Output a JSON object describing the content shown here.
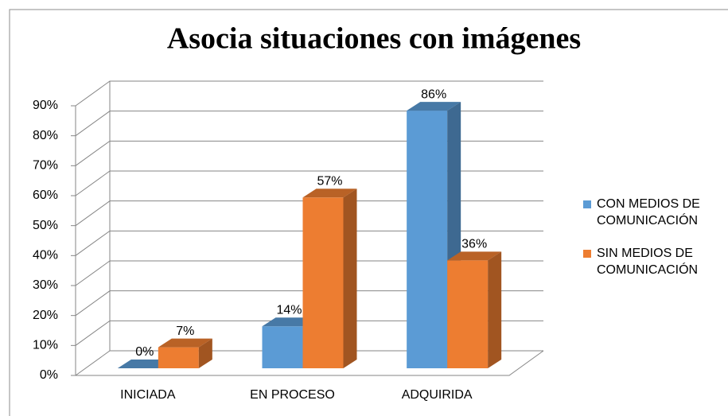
{
  "chart_data": {
    "type": "bar3d",
    "title": "Asocia situaciones con imágenes",
    "categories": [
      "INICIADA",
      "EN PROCESO",
      "ADQUIRIDA"
    ],
    "series": [
      {
        "name": "CON MEDIOS DE COMUNICACIÓN",
        "color": "#5b9bd5",
        "values": [
          0,
          14,
          86
        ],
        "value_labels": [
          "0%",
          "14%",
          "86%"
        ]
      },
      {
        "name": "SIN MEDIOS DE COMUNICACIÓN",
        "color": "#ed7d31",
        "values": [
          7,
          57,
          36
        ],
        "value_labels": [
          "7%",
          "57%",
          "36%"
        ]
      }
    ],
    "ylim": [
      0,
      90
    ],
    "yticks": [
      {
        "value": 0,
        "label": "0%"
      },
      {
        "value": 10,
        "label": "10%"
      },
      {
        "value": 20,
        "label": "20%"
      },
      {
        "value": 30,
        "label": "30%"
      },
      {
        "value": 40,
        "label": "40%"
      },
      {
        "value": 50,
        "label": "50%"
      },
      {
        "value": 60,
        "label": "60%"
      },
      {
        "value": 70,
        "label": "70%"
      },
      {
        "value": 80,
        "label": "80%"
      },
      {
        "value": 90,
        "label": "90%"
      }
    ],
    "grid": true,
    "legend": "right"
  }
}
